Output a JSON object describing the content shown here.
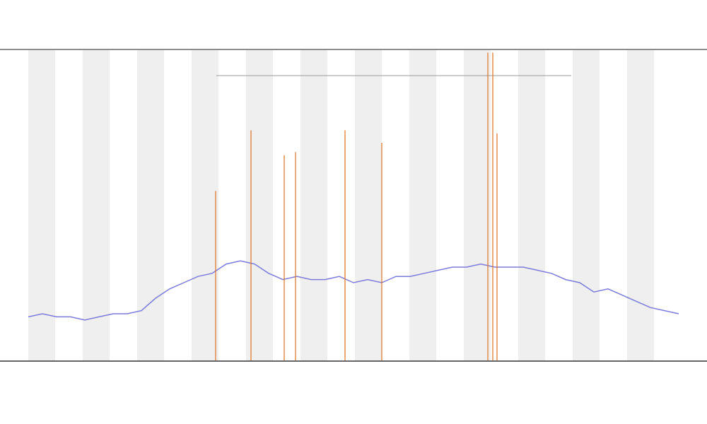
{
  "chart_data": {
    "type": "line",
    "x": [
      0,
      1,
      2,
      3,
      4,
      5,
      6,
      7,
      8,
      9,
      10,
      11,
      12,
      13,
      14,
      15,
      16,
      17,
      18,
      19,
      20,
      21,
      22,
      23,
      24,
      25,
      26,
      27,
      28,
      29,
      30,
      31,
      32,
      33,
      34,
      35,
      36,
      37,
      38,
      39,
      40,
      41,
      42,
      43,
      44,
      45,
      46
    ],
    "series": [
      {
        "color": "#7b7bdc",
        "values": [
          14,
          15,
          14,
          14,
          13,
          14,
          15,
          15,
          16,
          20,
          23,
          25,
          27,
          28,
          31,
          32,
          31,
          28,
          26,
          27,
          26,
          26,
          27,
          25,
          26,
          25,
          27,
          27,
          28,
          29,
          30,
          30,
          31,
          30,
          30,
          30,
          29,
          28,
          26,
          25,
          22,
          23,
          21,
          19,
          17,
          16,
          15
        ]
      },
      {
        "color": "#e07020",
        "x": [
          13.25,
          15.75,
          18.1,
          18.9,
          22.4,
          25,
          32.5,
          32.85,
          33.15
        ],
        "values": [
          54.5,
          74,
          66,
          67,
          74,
          70,
          99,
          99,
          73
        ]
      }
    ],
    "xlim": [
      0,
      46
    ],
    "ylim": [
      0,
      100
    ]
  }
}
